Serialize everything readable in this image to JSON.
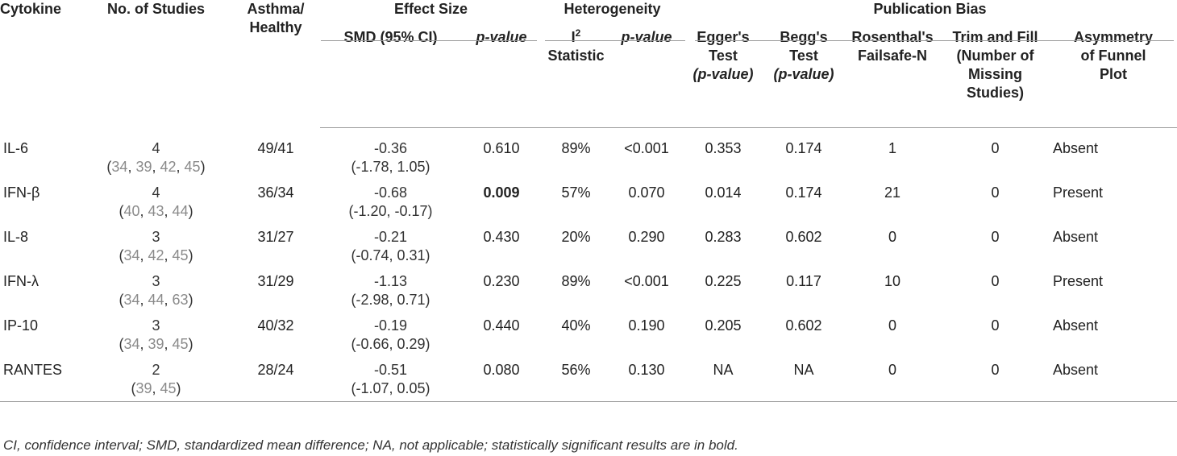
{
  "headers": {
    "cytokine": "Cytokine",
    "no_studies": "No. of Studies",
    "asthma_healthy_1": "Asthma/",
    "asthma_healthy_2": "Healthy",
    "effect_size": "Effect Size",
    "heterogeneity": "Heterogeneity",
    "publication_bias": "Publication Bias",
    "smd": "SMD (95% CI)",
    "p_value": "p-value",
    "i2_a": "I",
    "i2_sup": "2",
    "i2_b": "Statistic",
    "egger_1": "Egger's",
    "egger_2": "Test",
    "egger_3": "(p-value)",
    "begg_1": "Begg's",
    "begg_2": "Test",
    "begg_3": "(p-value)",
    "rosenthal_1": "Rosenthal's",
    "rosenthal_2": "Failsafe-N",
    "trim_1": "Trim and Fill",
    "trim_2": "(Number of",
    "trim_3": "Missing",
    "trim_4": "Studies)",
    "asym_1": "Asymmetry",
    "asym_2": "of Funnel",
    "asym_3": "Plot"
  },
  "rows": [
    {
      "cytokine": "IL-6",
      "n": "4",
      "refs": [
        "34",
        "39",
        "42",
        "45"
      ],
      "ah": "49/41",
      "smd": "-0.36",
      "ci": "(-1.78, 1.05)",
      "p": "0.610",
      "i2": "89%",
      "hp": "<0.001",
      "egger": "0.353",
      "begg": "0.174",
      "rosenthal": "1",
      "trim": "0",
      "asym": "Absent"
    },
    {
      "cytokine": "IFN-β",
      "n": "4",
      "refs": [
        "40",
        "43",
        "44"
      ],
      "ah": "36/34",
      "smd": "-0.68",
      "ci": "(-1.20, -0.17)",
      "p": "0.009",
      "i2": "57%",
      "hp": "0.070",
      "egger": "0.014",
      "begg": "0.174",
      "rosenthal": "21",
      "trim": "0",
      "asym": "Present"
    },
    {
      "cytokine": "IL-8",
      "n": "3",
      "refs": [
        "34",
        "42",
        "45"
      ],
      "ah": "31/27",
      "smd": "-0.21",
      "ci": "(-0.74, 0.31)",
      "p": "0.430",
      "i2": "20%",
      "hp": "0.290",
      "egger": "0.283",
      "begg": "0.602",
      "rosenthal": "0",
      "trim": "0",
      "asym": "Absent"
    },
    {
      "cytokine": "IFN-λ",
      "n": "3",
      "refs": [
        "34",
        "44",
        "63"
      ],
      "ah": "31/29",
      "smd": "-1.13",
      "ci": "(-2.98, 0.71)",
      "p": "0.230",
      "i2": "89%",
      "hp": "<0.001",
      "egger": "0.225",
      "begg": "0.117",
      "rosenthal": "10",
      "trim": "0",
      "asym": "Present"
    },
    {
      "cytokine": "IP-10",
      "n": "3",
      "refs": [
        "34",
        "39",
        "45"
      ],
      "ah": "40/32",
      "smd": "-0.19",
      "ci": "(-0.66, 0.29)",
      "p": "0.440",
      "i2": "40%",
      "hp": "0.190",
      "egger": "0.205",
      "begg": "0.602",
      "rosenthal": "0",
      "trim": "0",
      "asym": "Absent"
    },
    {
      "cytokine": "RANTES",
      "n": "2",
      "refs": [
        "39",
        "45"
      ],
      "ah": "28/24",
      "smd": "-0.51",
      "ci": "(-1.07, 0.05)",
      "p": "0.080",
      "i2": "56%",
      "hp": "0.130",
      "egger": "NA",
      "begg": "NA",
      "rosenthal": "0",
      "trim": "0",
      "asym": "Absent"
    }
  ],
  "footnote": "CI, confidence interval; SMD, standardized mean difference; NA, not applicable; statistically significant results are in bold.",
  "colors": {
    "ref": "#8a8a8a",
    "rule": "#9a9a9a"
  }
}
